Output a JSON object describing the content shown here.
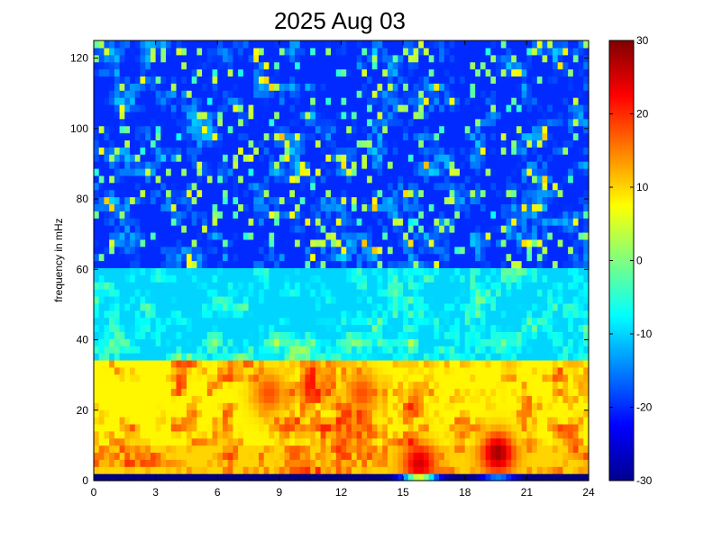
{
  "chart_data": {
    "type": "heatmap",
    "title": "2025 Aug 03",
    "xlabel": "",
    "ylabel": "frequency in mHz",
    "xlim": [
      0,
      24
    ],
    "ylim": [
      0,
      125
    ],
    "x_ticks": [
      0,
      3,
      6,
      9,
      12,
      15,
      18,
      21,
      24
    ],
    "x_tick_labels": [
      "0",
      "3",
      "6",
      "9",
      "12",
      "15",
      "18",
      "21",
      "24"
    ],
    "y_ticks": [
      0,
      20,
      40,
      60,
      80,
      100,
      120
    ],
    "y_tick_labels": [
      "0",
      "20",
      "40",
      "60",
      "80",
      "100",
      "120"
    ],
    "colorbar": {
      "colormap": "jet",
      "range": [
        -30,
        30
      ],
      "ticks": [
        -30,
        -20,
        -10,
        0,
        10,
        20,
        30
      ],
      "tick_labels": [
        "-30",
        "-20",
        "-10",
        "0",
        "10",
        "20",
        "30"
      ]
    },
    "grid": false,
    "cell_grid": {
      "time_bins": 96,
      "frequency_bins": 62
    },
    "approx_level_profile": [
      {
        "frequency_mHz": [
          0,
          2
        ],
        "value": -30
      },
      {
        "frequency_mHz": [
          2,
          10
        ],
        "value": 10
      },
      {
        "frequency_mHz": [
          10,
          35
        ],
        "value": 8
      },
      {
        "frequency_mHz": [
          35,
          60
        ],
        "value": -10
      },
      {
        "frequency_mHz": [
          60,
          125
        ],
        "value": -20
      }
    ],
    "hot_spots": [
      {
        "time_h": 15.8,
        "frequency_mHz": 5,
        "value": 25
      },
      {
        "time_h": 19.6,
        "frequency_mHz": 8,
        "value": 28
      },
      {
        "time_h": 13.0,
        "frequency_mHz": 25,
        "value": 18
      },
      {
        "time_h": 8.5,
        "frequency_mHz": 25,
        "value": 18
      }
    ]
  }
}
